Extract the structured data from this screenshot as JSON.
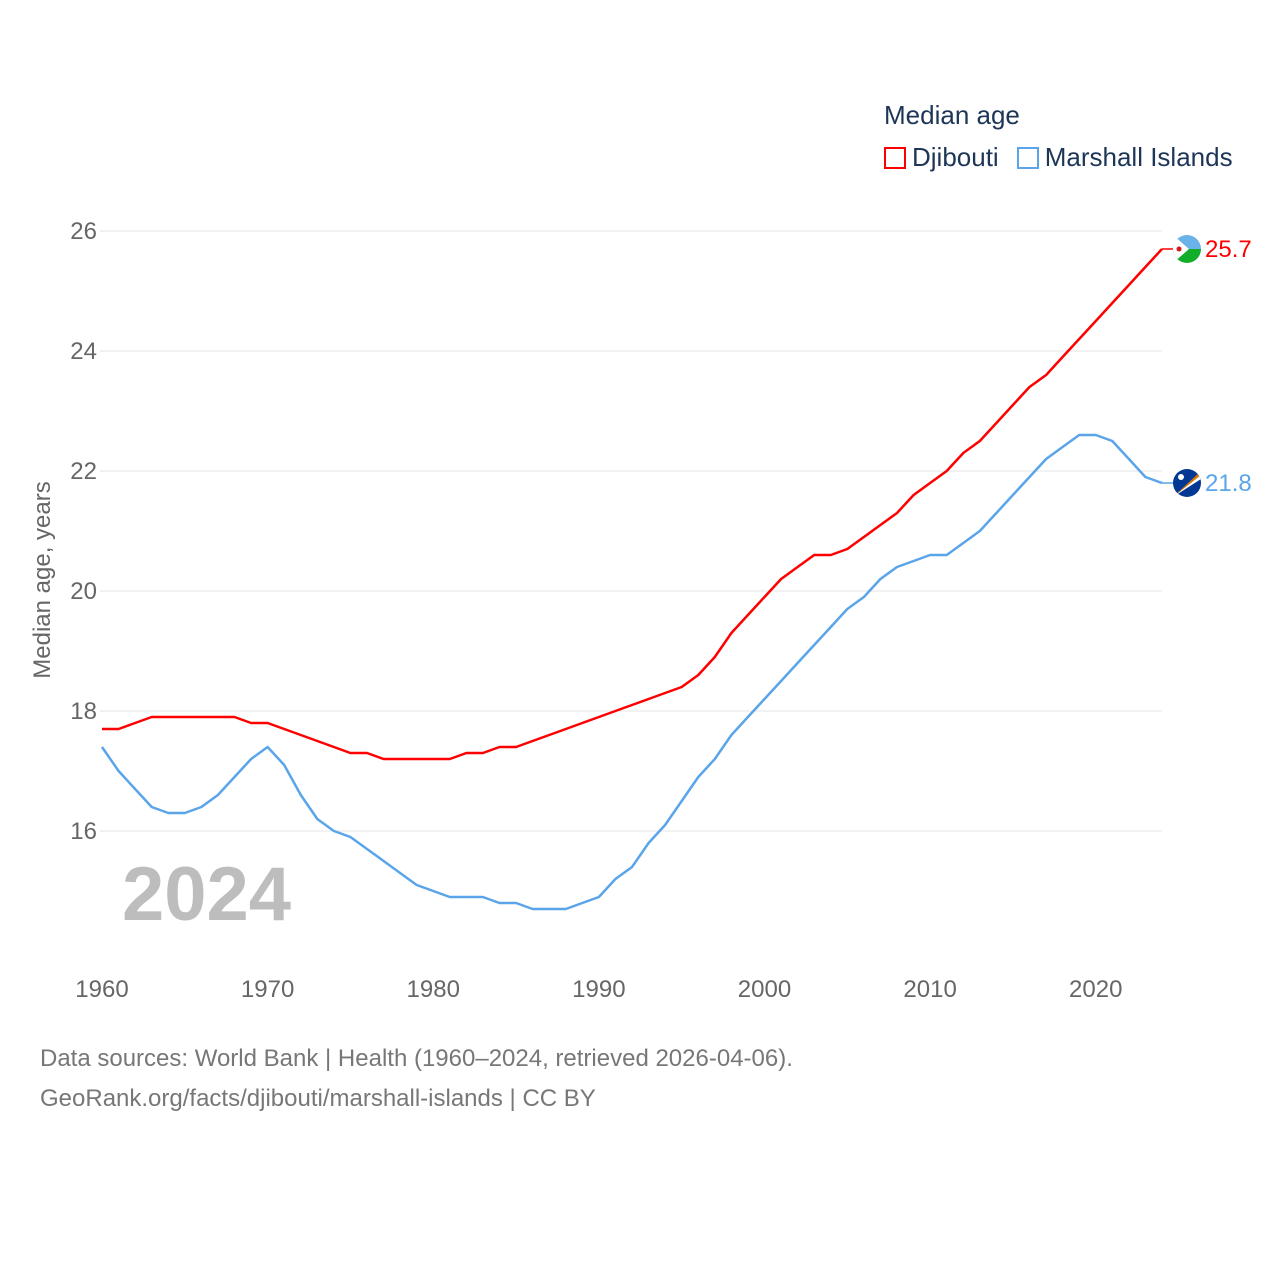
{
  "chart_data": {
    "type": "line",
    "title": "Median age",
    "xlabel": "",
    "ylabel": "Median age, years",
    "xlim": [
      1960,
      2024
    ],
    "ylim": [
      14.4,
      26.3
    ],
    "yticks": [
      16,
      18,
      20,
      22,
      24,
      26
    ],
    "xticks": [
      1960,
      1970,
      1980,
      1990,
      2000,
      2010,
      2020
    ],
    "grid": true,
    "legend_position": "top-right",
    "year_label": "2024",
    "x": [
      1960,
      1961,
      1962,
      1963,
      1964,
      1965,
      1966,
      1967,
      1968,
      1969,
      1970,
      1971,
      1972,
      1973,
      1974,
      1975,
      1976,
      1977,
      1978,
      1979,
      1980,
      1981,
      1982,
      1983,
      1984,
      1985,
      1986,
      1987,
      1988,
      1989,
      1990,
      1991,
      1992,
      1993,
      1994,
      1995,
      1996,
      1997,
      1998,
      1999,
      2000,
      2001,
      2002,
      2003,
      2004,
      2005,
      2006,
      2007,
      2008,
      2009,
      2010,
      2011,
      2012,
      2013,
      2014,
      2015,
      2016,
      2017,
      2018,
      2019,
      2020,
      2021,
      2022,
      2023,
      2024
    ],
    "series": [
      {
        "name": "Djibouti",
        "color": "#ff0000",
        "end_label": "25.7",
        "values": [
          17.7,
          17.7,
          17.8,
          17.9,
          17.9,
          17.9,
          17.9,
          17.9,
          17.9,
          17.8,
          17.8,
          17.7,
          17.6,
          17.5,
          17.4,
          17.3,
          17.3,
          17.2,
          17.2,
          17.2,
          17.2,
          17.2,
          17.3,
          17.3,
          17.4,
          17.4,
          17.5,
          17.6,
          17.7,
          17.8,
          17.9,
          18.0,
          18.1,
          18.2,
          18.3,
          18.4,
          18.6,
          18.9,
          19.3,
          19.6,
          19.9,
          20.2,
          20.4,
          20.6,
          20.6,
          20.7,
          20.9,
          21.1,
          21.3,
          21.6,
          21.8,
          22.0,
          22.3,
          22.5,
          22.8,
          23.1,
          23.4,
          23.6,
          23.9,
          24.2,
          24.5,
          24.8,
          25.1,
          25.4,
          25.7
        ]
      },
      {
        "name": "Marshall Islands",
        "color": "#5aa5ea",
        "end_label": "21.8",
        "values": [
          17.4,
          17.0,
          16.7,
          16.4,
          16.3,
          16.3,
          16.4,
          16.6,
          16.9,
          17.2,
          17.4,
          17.1,
          16.6,
          16.2,
          16.0,
          15.9,
          15.7,
          15.5,
          15.3,
          15.1,
          15.0,
          14.9,
          14.9,
          14.9,
          14.8,
          14.8,
          14.7,
          14.7,
          14.7,
          14.8,
          14.9,
          15.2,
          15.4,
          15.8,
          16.1,
          16.5,
          16.9,
          17.2,
          17.6,
          17.9,
          18.2,
          18.5,
          18.8,
          19.1,
          19.4,
          19.7,
          19.9,
          20.2,
          20.4,
          20.5,
          20.6,
          20.6,
          20.8,
          21.0,
          21.3,
          21.6,
          21.9,
          22.2,
          22.4,
          22.6,
          22.6,
          22.5,
          22.2,
          21.9,
          21.8
        ]
      }
    ]
  },
  "footer": {
    "line1": "Data sources: World Bank | Health (1960–2024, retrieved 2026-04-06).",
    "line2": "GeoRank.org/facts/djibouti/marshall-islands | CC BY"
  }
}
